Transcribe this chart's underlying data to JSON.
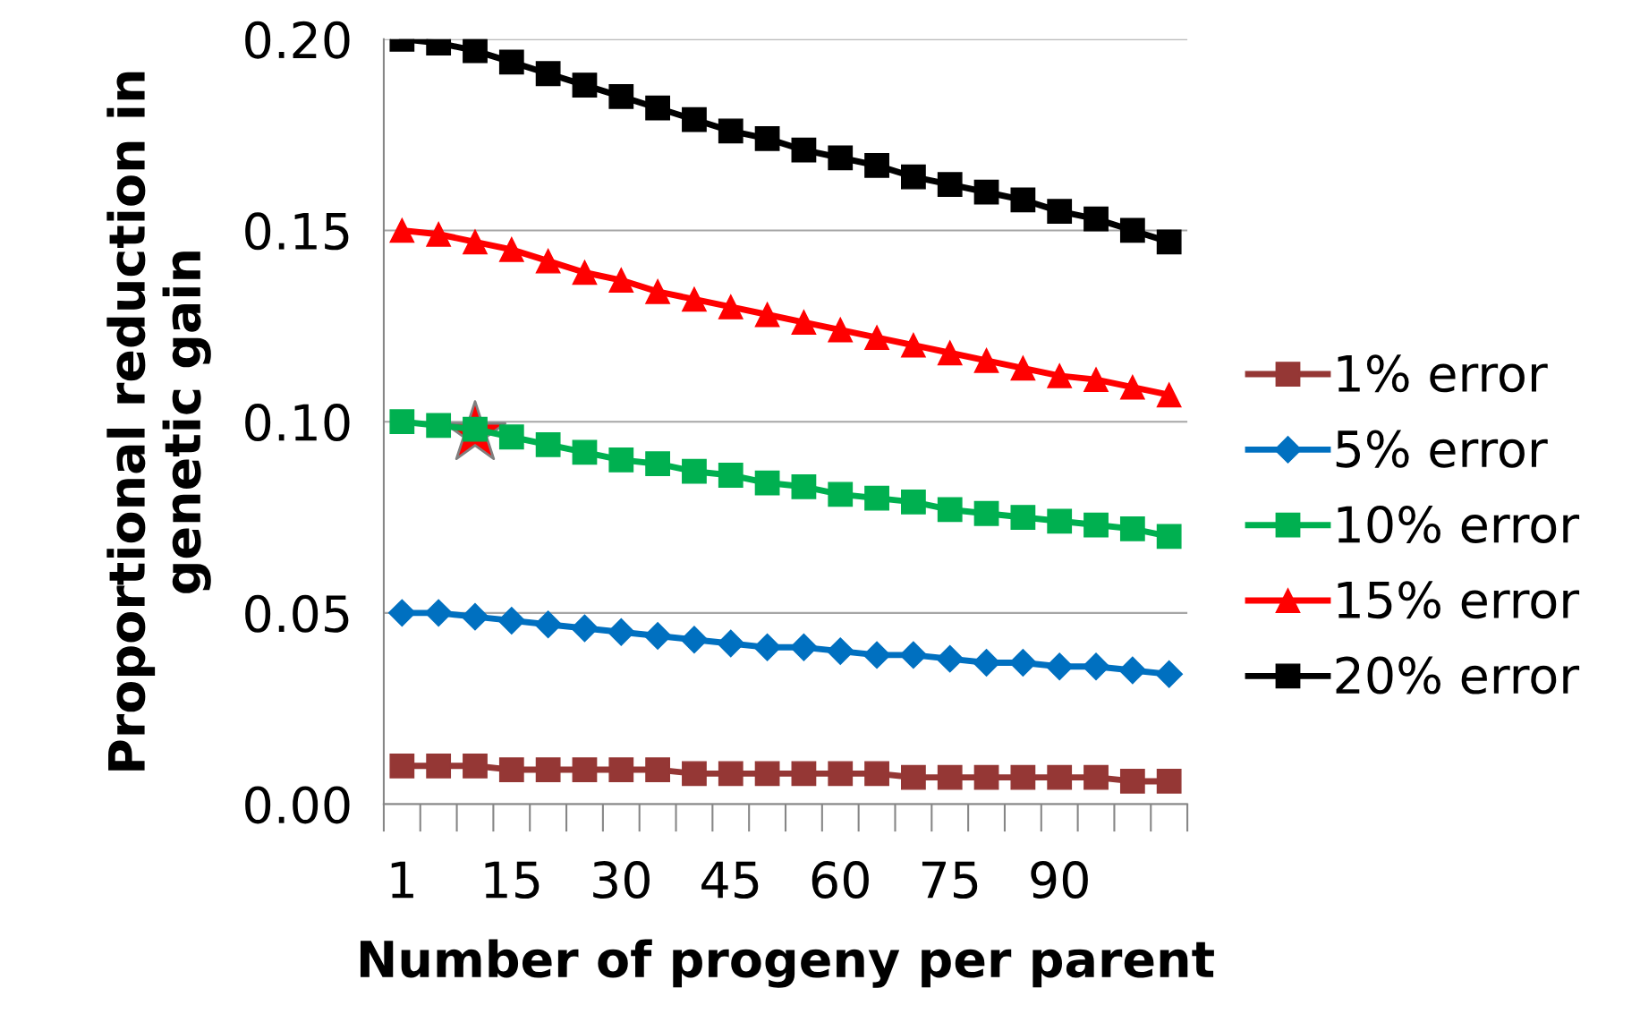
{
  "chart_data": {
    "type": "line",
    "xlabel": "Number of progeny per parent",
    "ylabel": "Proportional reduction in\ngenetic gain",
    "categories": [
      "1",
      null,
      null,
      "15",
      null,
      null,
      "30",
      null,
      null,
      "45",
      null,
      null,
      "60",
      null,
      null,
      "75",
      null,
      null,
      "90",
      null,
      null,
      null
    ],
    "ylim": [
      0,
      0.2
    ],
    "yticks": [
      {
        "value": 0,
        "label": "0.00"
      },
      {
        "value": 0.05,
        "label": "0.05"
      },
      {
        "value": 0.1,
        "label": "0.10"
      },
      {
        "value": 0.15,
        "label": "0.15"
      },
      {
        "value": 0.2,
        "label": "0.20"
      }
    ],
    "grid": "y",
    "legend": "right",
    "series": [
      {
        "name": "1% error",
        "color": "#953735",
        "marker": "square",
        "values": [
          0.01,
          0.01,
          0.01,
          0.009,
          0.009,
          0.009,
          0.009,
          0.009,
          0.008,
          0.008,
          0.008,
          0.008,
          0.008,
          0.008,
          0.007,
          0.007,
          0.007,
          0.007,
          0.007,
          0.007,
          0.006,
          0.006
        ]
      },
      {
        "name": "5% error",
        "color": "#0070c0",
        "marker": "diamond",
        "values": [
          0.05,
          0.05,
          0.049,
          0.048,
          0.047,
          0.046,
          0.045,
          0.044,
          0.043,
          0.042,
          0.041,
          0.041,
          0.04,
          0.039,
          0.039,
          0.038,
          0.037,
          0.037,
          0.036,
          0.036,
          0.035,
          0.034
        ]
      },
      {
        "name": "10% error",
        "color": "#00b050",
        "marker": "square",
        "values": [
          0.1,
          0.099,
          0.098,
          0.096,
          0.094,
          0.092,
          0.09,
          0.089,
          0.087,
          0.086,
          0.084,
          0.083,
          0.081,
          0.08,
          0.079,
          0.077,
          0.076,
          0.075,
          0.074,
          0.073,
          0.072,
          0.07
        ]
      },
      {
        "name": "15% error",
        "color": "#ff0000",
        "marker": "triangle",
        "values": [
          0.15,
          0.149,
          0.147,
          0.145,
          0.142,
          0.139,
          0.137,
          0.134,
          0.132,
          0.13,
          0.128,
          0.126,
          0.124,
          0.122,
          0.12,
          0.118,
          0.116,
          0.114,
          0.112,
          0.111,
          0.109,
          0.107
        ]
      },
      {
        "name": "20% error",
        "color": "#000000",
        "marker": "square",
        "values": [
          0.2,
          0.199,
          0.197,
          0.194,
          0.191,
          0.188,
          0.185,
          0.182,
          0.179,
          0.176,
          0.174,
          0.171,
          0.169,
          0.167,
          0.164,
          0.162,
          0.16,
          0.158,
          0.155,
          0.153,
          0.15,
          0.147
        ]
      },
      {
        "type": "scatter",
        "color": "#ff0000",
        "marker": "star",
        "values": [
          null,
          null,
          0.097,
          null,
          null,
          null,
          null,
          null,
          null,
          null,
          null,
          null,
          null,
          null,
          null,
          null,
          null,
          null,
          null,
          null,
          null,
          null
        ]
      }
    ]
  }
}
